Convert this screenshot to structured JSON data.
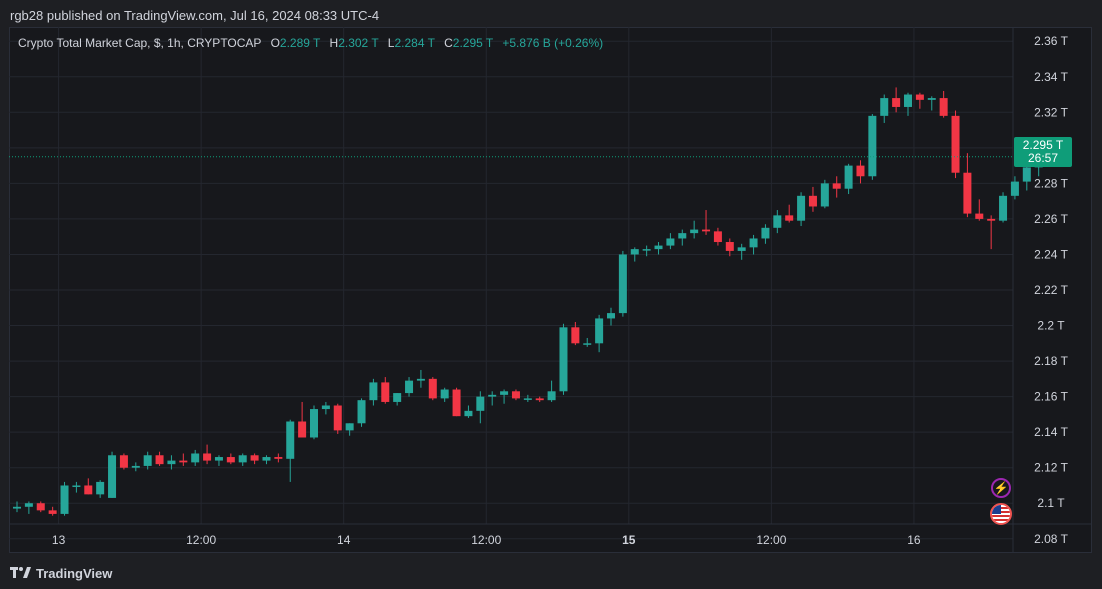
{
  "header": {
    "published": "rgb28 published on TradingView.com, Jul 16, 2024 08:33 UTC-4"
  },
  "legend": {
    "symbol": "Crypto Total Market Cap, $, 1h, CRYPTOCAP",
    "o_key": "O",
    "o_val": "2.289 T",
    "h_key": "H",
    "h_val": "2.302 T",
    "l_key": "L",
    "l_val": "2.284 T",
    "c_key": "C",
    "c_val": "2.295 T",
    "change": "+5.876 B (+0.26%)"
  },
  "price_tag": {
    "price": "2.295 T",
    "countdown": "26:57"
  },
  "footer": {
    "brand": "TradingView"
  },
  "icons": {
    "bolt": "lightning-icon",
    "flag": "us-flag-icon",
    "logo": "tradingview-logo-icon"
  },
  "colors": {
    "up": "#26a69a",
    "down": "#f23645",
    "background": "#17181c",
    "grid": "#24272f",
    "text": "#d1d4dc",
    "current_price": "#0f9d79"
  },
  "chart_data": {
    "type": "candlestick",
    "unit": "T",
    "ylim": [
      2.072,
      2.368
    ],
    "y_ticks": [
      2.08,
      2.1,
      2.12,
      2.14,
      2.16,
      2.18,
      2.2,
      2.22,
      2.24,
      2.26,
      2.28,
      2.3,
      2.32,
      2.34,
      2.36
    ],
    "y_tick_labels": [
      "2.08 T",
      "2.1 T",
      "2.12 T",
      "2.14 T",
      "2.16 T",
      "2.18 T",
      "2.2 T",
      "2.22 T",
      "2.24 T",
      "2.26 T",
      "2.28 T",
      "2.3 T",
      "2.32 T",
      "2.34 T",
      "2.36 T"
    ],
    "x_ticks": [
      {
        "index": 3.5,
        "label": "13",
        "bold": false
      },
      {
        "index": 15.5,
        "label": "12:00",
        "bold": false
      },
      {
        "index": 27.5,
        "label": "14",
        "bold": false
      },
      {
        "index": 39.5,
        "label": "12:00",
        "bold": false
      },
      {
        "index": 51.5,
        "label": "15",
        "bold": true
      },
      {
        "index": 63.5,
        "label": "12:00",
        "bold": false
      },
      {
        "index": 75.5,
        "label": "16",
        "bold": false
      }
    ],
    "last_price": 2.295,
    "candles": [
      {
        "o": 2.097,
        "h": 2.101,
        "l": 2.095,
        "c": 2.098
      },
      {
        "o": 2.098,
        "h": 2.101,
        "l": 2.094,
        "c": 2.1
      },
      {
        "o": 2.1,
        "h": 2.101,
        "l": 2.095,
        "c": 2.096
      },
      {
        "o": 2.096,
        "h": 2.098,
        "l": 2.093,
        "c": 2.094
      },
      {
        "o": 2.094,
        "h": 2.112,
        "l": 2.093,
        "c": 2.11
      },
      {
        "o": 2.11,
        "h": 2.112,
        "l": 2.106,
        "c": 2.11
      },
      {
        "o": 2.11,
        "h": 2.114,
        "l": 2.105,
        "c": 2.105
      },
      {
        "o": 2.105,
        "h": 2.113,
        "l": 2.103,
        "c": 2.112
      },
      {
        "o": 2.103,
        "h": 2.129,
        "l": 2.103,
        "c": 2.127
      },
      {
        "o": 2.127,
        "h": 2.128,
        "l": 2.119,
        "c": 2.12
      },
      {
        "o": 2.12,
        "h": 2.123,
        "l": 2.118,
        "c": 2.121
      },
      {
        "o": 2.121,
        "h": 2.129,
        "l": 2.119,
        "c": 2.127
      },
      {
        "o": 2.127,
        "h": 2.129,
        "l": 2.121,
        "c": 2.122
      },
      {
        "o": 2.122,
        "h": 2.127,
        "l": 2.119,
        "c": 2.124
      },
      {
        "o": 2.124,
        "h": 2.128,
        "l": 2.121,
        "c": 2.123
      },
      {
        "o": 2.123,
        "h": 2.13,
        "l": 2.121,
        "c": 2.128
      },
      {
        "o": 2.128,
        "h": 2.133,
        "l": 2.122,
        "c": 2.124
      },
      {
        "o": 2.124,
        "h": 2.127,
        "l": 2.121,
        "c": 2.126
      },
      {
        "o": 2.126,
        "h": 2.128,
        "l": 2.122,
        "c": 2.123
      },
      {
        "o": 2.123,
        "h": 2.128,
        "l": 2.121,
        "c": 2.127
      },
      {
        "o": 2.127,
        "h": 2.128,
        "l": 2.122,
        "c": 2.124
      },
      {
        "o": 2.124,
        "h": 2.127,
        "l": 2.122,
        "c": 2.126
      },
      {
        "o": 2.126,
        "h": 2.128,
        "l": 2.123,
        "c": 2.125
      },
      {
        "o": 2.125,
        "h": 2.147,
        "l": 2.112,
        "c": 2.146
      },
      {
        "o": 2.146,
        "h": 2.157,
        "l": 2.137,
        "c": 2.137
      },
      {
        "o": 2.137,
        "h": 2.155,
        "l": 2.136,
        "c": 2.153
      },
      {
        "o": 2.153,
        "h": 2.157,
        "l": 2.15,
        "c": 2.155
      },
      {
        "o": 2.155,
        "h": 2.156,
        "l": 2.139,
        "c": 2.141
      },
      {
        "o": 2.141,
        "h": 2.145,
        "l": 2.138,
        "c": 2.145
      },
      {
        "o": 2.145,
        "h": 2.159,
        "l": 2.143,
        "c": 2.158
      },
      {
        "o": 2.158,
        "h": 2.17,
        "l": 2.155,
        "c": 2.168
      },
      {
        "o": 2.168,
        "h": 2.171,
        "l": 2.156,
        "c": 2.157
      },
      {
        "o": 2.157,
        "h": 2.162,
        "l": 2.155,
        "c": 2.162
      },
      {
        "o": 2.162,
        "h": 2.171,
        "l": 2.16,
        "c": 2.169
      },
      {
        "o": 2.169,
        "h": 2.175,
        "l": 2.165,
        "c": 2.17
      },
      {
        "o": 2.17,
        "h": 2.171,
        "l": 2.158,
        "c": 2.159
      },
      {
        "o": 2.159,
        "h": 2.165,
        "l": 2.157,
        "c": 2.164
      },
      {
        "o": 2.164,
        "h": 2.165,
        "l": 2.149,
        "c": 2.149
      },
      {
        "o": 2.149,
        "h": 2.155,
        "l": 2.148,
        "c": 2.152
      },
      {
        "o": 2.152,
        "h": 2.163,
        "l": 2.145,
        "c": 2.16
      },
      {
        "o": 2.16,
        "h": 2.163,
        "l": 2.155,
        "c": 2.161
      },
      {
        "o": 2.161,
        "h": 2.164,
        "l": 2.156,
        "c": 2.163
      },
      {
        "o": 2.163,
        "h": 2.164,
        "l": 2.158,
        "c": 2.159
      },
      {
        "o": 2.159,
        "h": 2.161,
        "l": 2.157,
        "c": 2.159
      },
      {
        "o": 2.159,
        "h": 2.16,
        "l": 2.157,
        "c": 2.158
      },
      {
        "o": 2.158,
        "h": 2.169,
        "l": 2.157,
        "c": 2.163
      },
      {
        "o": 2.163,
        "h": 2.201,
        "l": 2.161,
        "c": 2.199
      },
      {
        "o": 2.199,
        "h": 2.202,
        "l": 2.189,
        "c": 2.19
      },
      {
        "o": 2.19,
        "h": 2.193,
        "l": 2.188,
        "c": 2.19
      },
      {
        "o": 2.19,
        "h": 2.206,
        "l": 2.185,
        "c": 2.204
      },
      {
        "o": 2.204,
        "h": 2.21,
        "l": 2.2,
        "c": 2.207
      },
      {
        "o": 2.207,
        "h": 2.242,
        "l": 2.205,
        "c": 2.24
      },
      {
        "o": 2.24,
        "h": 2.244,
        "l": 2.236,
        "c": 2.243
      },
      {
        "o": 2.243,
        "h": 2.245,
        "l": 2.239,
        "c": 2.243
      },
      {
        "o": 2.243,
        "h": 2.247,
        "l": 2.24,
        "c": 2.245
      },
      {
        "o": 2.245,
        "h": 2.252,
        "l": 2.243,
        "c": 2.249
      },
      {
        "o": 2.249,
        "h": 2.254,
        "l": 2.245,
        "c": 2.252
      },
      {
        "o": 2.252,
        "h": 2.259,
        "l": 2.249,
        "c": 2.254
      },
      {
        "o": 2.254,
        "h": 2.265,
        "l": 2.251,
        "c": 2.253
      },
      {
        "o": 2.253,
        "h": 2.255,
        "l": 2.245,
        "c": 2.247
      },
      {
        "o": 2.247,
        "h": 2.249,
        "l": 2.239,
        "c": 2.242
      },
      {
        "o": 2.242,
        "h": 2.246,
        "l": 2.237,
        "c": 2.244
      },
      {
        "o": 2.244,
        "h": 2.251,
        "l": 2.24,
        "c": 2.249
      },
      {
        "o": 2.249,
        "h": 2.257,
        "l": 2.246,
        "c": 2.255
      },
      {
        "o": 2.255,
        "h": 2.265,
        "l": 2.252,
        "c": 2.262
      },
      {
        "o": 2.262,
        "h": 2.268,
        "l": 2.258,
        "c": 2.259
      },
      {
        "o": 2.259,
        "h": 2.275,
        "l": 2.256,
        "c": 2.273
      },
      {
        "o": 2.273,
        "h": 2.278,
        "l": 2.264,
        "c": 2.267
      },
      {
        "o": 2.267,
        "h": 2.282,
        "l": 2.266,
        "c": 2.28
      },
      {
        "o": 2.28,
        "h": 2.284,
        "l": 2.272,
        "c": 2.277
      },
      {
        "o": 2.277,
        "h": 2.291,
        "l": 2.274,
        "c": 2.29
      },
      {
        "o": 2.29,
        "h": 2.293,
        "l": 2.28,
        "c": 2.284
      },
      {
        "o": 2.284,
        "h": 2.319,
        "l": 2.282,
        "c": 2.318
      },
      {
        "o": 2.318,
        "h": 2.33,
        "l": 2.314,
        "c": 2.328
      },
      {
        "o": 2.328,
        "h": 2.334,
        "l": 2.32,
        "c": 2.323
      },
      {
        "o": 2.323,
        "h": 2.331,
        "l": 2.318,
        "c": 2.33
      },
      {
        "o": 2.33,
        "h": 2.331,
        "l": 2.322,
        "c": 2.327
      },
      {
        "o": 2.327,
        "h": 2.329,
        "l": 2.321,
        "c": 2.328
      },
      {
        "o": 2.328,
        "h": 2.332,
        "l": 2.317,
        "c": 2.318
      },
      {
        "o": 2.318,
        "h": 2.321,
        "l": 2.283,
        "c": 2.286
      },
      {
        "o": 2.286,
        "h": 2.297,
        "l": 2.261,
        "c": 2.263
      },
      {
        "o": 2.263,
        "h": 2.271,
        "l": 2.259,
        "c": 2.26
      },
      {
        "o": 2.26,
        "h": 2.262,
        "l": 2.243,
        "c": 2.259
      },
      {
        "o": 2.259,
        "h": 2.275,
        "l": 2.258,
        "c": 2.273
      },
      {
        "o": 2.273,
        "h": 2.284,
        "l": 2.271,
        "c": 2.281
      },
      {
        "o": 2.281,
        "h": 2.292,
        "l": 2.276,
        "c": 2.289
      },
      {
        "o": 2.289,
        "h": 2.302,
        "l": 2.284,
        "c": 2.295
      }
    ]
  }
}
